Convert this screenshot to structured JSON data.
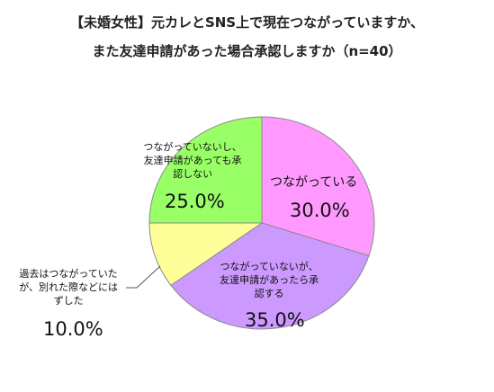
{
  "chart_data": {
    "type": "pie",
    "title": [
      "【未婚女性】元カレとSNS上で現在つながっていますか、",
      "また友達申請があった場合承認しますか（n=40）"
    ],
    "categories": [
      "つながっている",
      "つながっていないが、友達申請があったら承認する",
      "過去はつながっていたが、別れた際などにはずした",
      "つながっていないし、友達申請があっても承認しない"
    ],
    "values": [
      30,
      35,
      10,
      25
    ],
    "value_labels": [
      "30.0%",
      "35.0%",
      "10.0%",
      "25.0%"
    ],
    "colors": [
      "#ff99ff",
      "#cc99ff",
      "#ffff99",
      "#99ff66"
    ]
  }
}
